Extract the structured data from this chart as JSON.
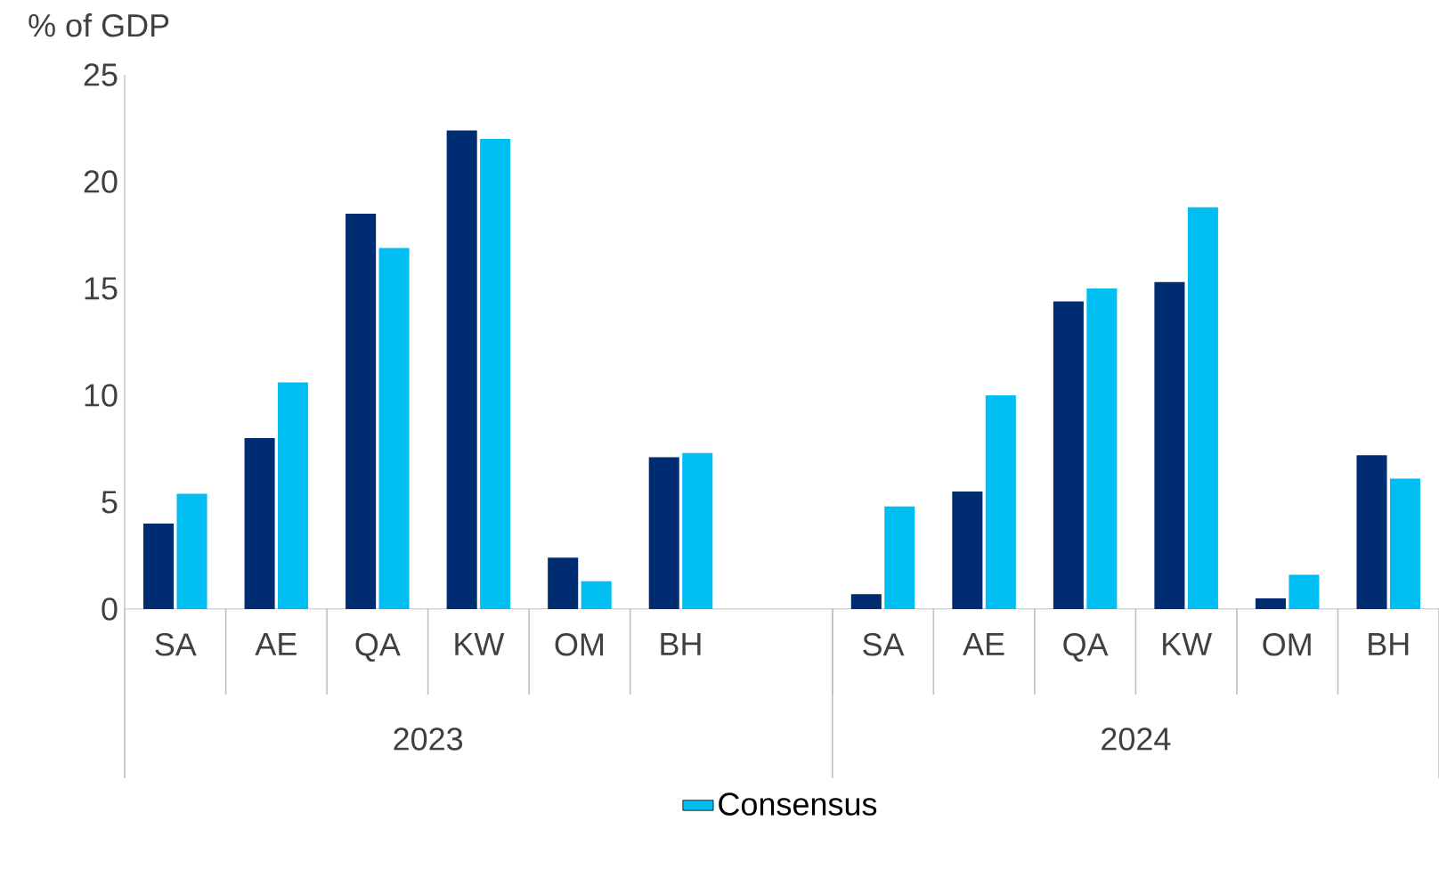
{
  "chart_data": {
    "type": "bar",
    "ylabel": "% of GDP",
    "categories": [
      "SA",
      "AE",
      "QA",
      "KW",
      "OM",
      "BH",
      null,
      "SA",
      "AE",
      "QA",
      "KW",
      "OM",
      "BH"
    ],
    "annotations": [
      "2023",
      "2024"
    ],
    "series": [
      {
        "color": "#002d72",
        "values": [
          4.0,
          8.0,
          18.5,
          22.4,
          2.4,
          7.1,
          null,
          0.7,
          5.5,
          14.4,
          15.3,
          0.5,
          7.2
        ]
      },
      {
        "name": "Consensus",
        "color": "#00bdf2",
        "values": [
          5.4,
          10.6,
          16.9,
          22.0,
          1.3,
          7.3,
          null,
          4.8,
          10.0,
          15.0,
          18.8,
          1.6,
          6.1
        ]
      }
    ],
    "ylim": [
      0,
      25
    ],
    "yticks": [
      0,
      5,
      10,
      15,
      20,
      25
    ],
    "grid": false,
    "legend": "bottom"
  }
}
